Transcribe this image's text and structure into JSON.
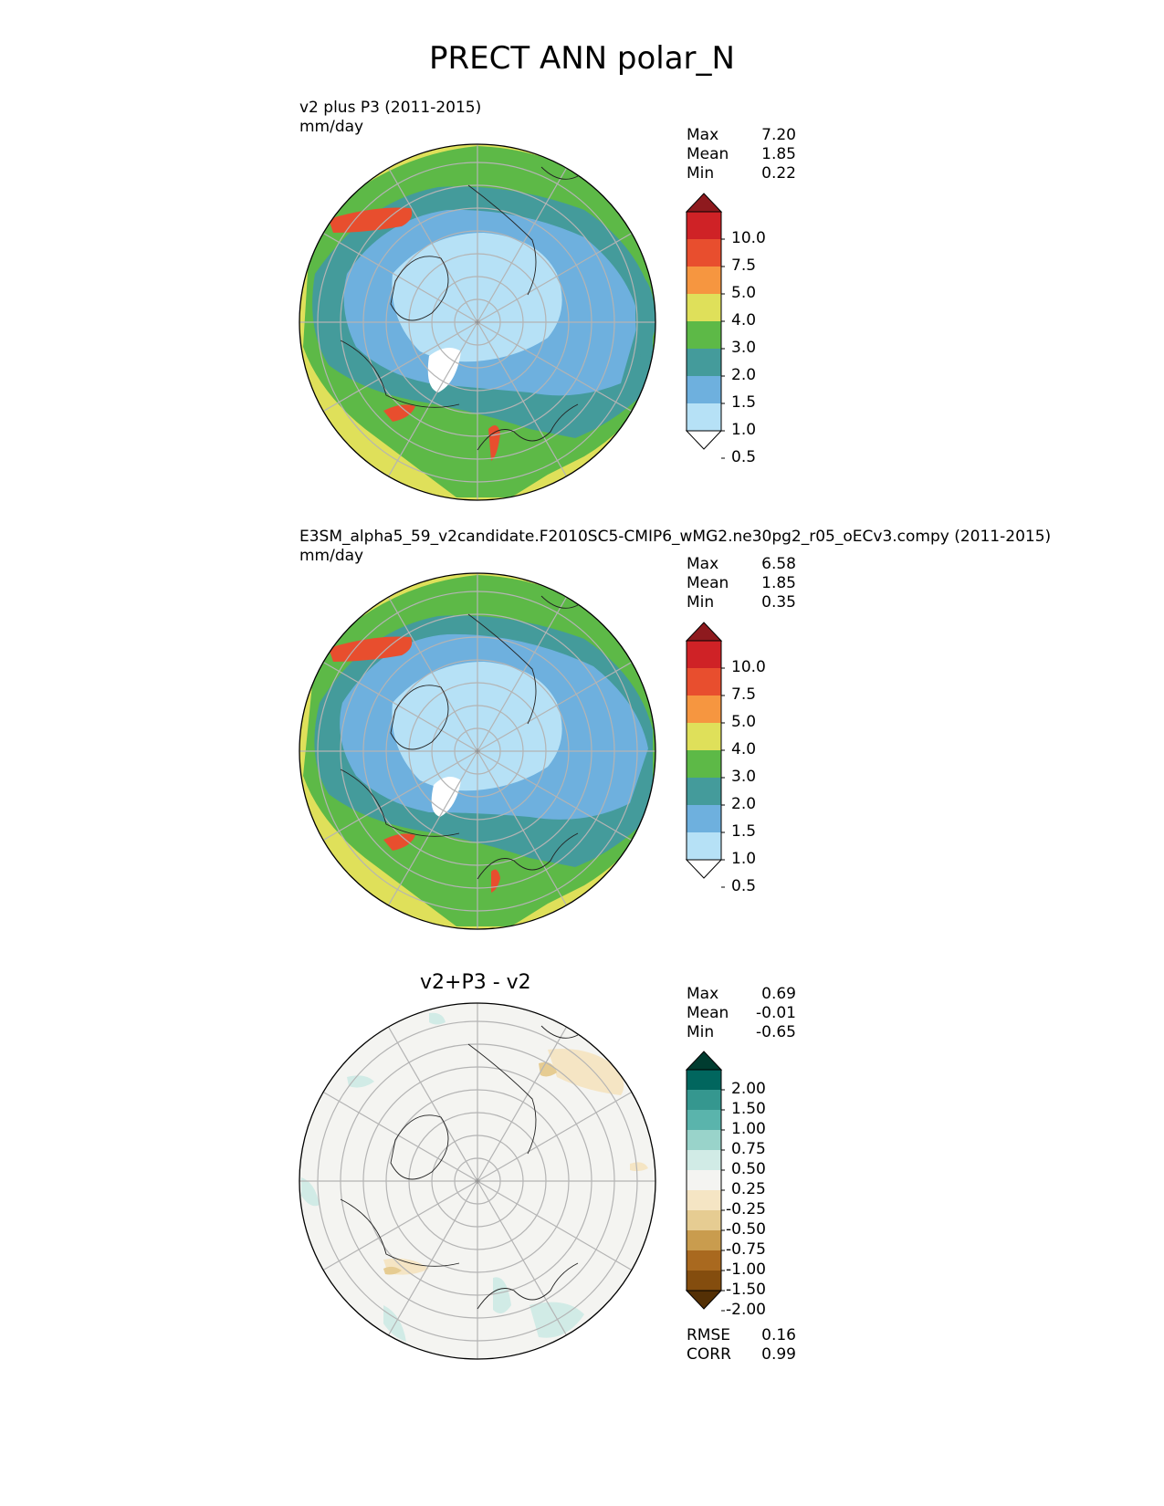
{
  "title": "PRECT ANN polar_N",
  "panels": [
    {
      "id": "test",
      "title_line1": "v2 plus P3 (2011-2015)",
      "title_line2": "mm/day",
      "stats": {
        "max_label": "Max",
        "max": "7.20",
        "mean_label": "Mean",
        "mean": "1.85",
        "min_label": "Min",
        "min": "0.22"
      },
      "colorbar": {
        "ticks": [
          "10.0",
          "7.5",
          "5.0",
          "4.0",
          "3.0",
          "2.0",
          "1.5",
          "1.0",
          "0.5"
        ],
        "colors": [
          "#8e1a1e",
          "#cf2226",
          "#e84e2e",
          "#f69640",
          "#dfe05a",
          "#5db947",
          "#449b9b",
          "#6eb0de",
          "#b6e1f6",
          "#ffffff"
        ]
      }
    },
    {
      "id": "ref",
      "title_line1": "E3SM_alpha5_59_v2candidate.F2010SC5-CMIP6_wMG2.ne30pg2_r05_oECv3.compy (2011-2015)",
      "title_line2": "mm/day",
      "stats": {
        "max_label": "Max",
        "max": "6.58",
        "mean_label": "Mean",
        "mean": "1.85",
        "min_label": "Min",
        "min": "0.35"
      },
      "colorbar": {
        "ticks": [
          "10.0",
          "7.5",
          "5.0",
          "4.0",
          "3.0",
          "2.0",
          "1.5",
          "1.0",
          "0.5"
        ],
        "colors": [
          "#8e1a1e",
          "#cf2226",
          "#e84e2e",
          "#f69640",
          "#dfe05a",
          "#5db947",
          "#449b9b",
          "#6eb0de",
          "#b6e1f6",
          "#ffffff"
        ]
      }
    },
    {
      "id": "diff",
      "title_center": "v2+P3 - v2",
      "stats": {
        "max_label": "Max",
        "max": "0.69",
        "mean_label": "Mean",
        "mean": "-0.01",
        "min_label": "Min",
        "min": "-0.65"
      },
      "colorbar": {
        "ticks": [
          "2.00",
          "1.50",
          "1.00",
          "0.75",
          "0.50",
          "0.25",
          "-0.25",
          "-0.50",
          "-0.75",
          "-1.00",
          "-1.50",
          "-2.00"
        ],
        "colors": [
          "#003c30",
          "#01665e",
          "#35978f",
          "#5ab4ac",
          "#99d3ca",
          "#d1ebe6",
          "#f4f4f1",
          "#f5e5c4",
          "#e6cc92",
          "#c99c4e",
          "#a9691f",
          "#844d0e",
          "#543005"
        ]
      },
      "rmse_label": "RMSE",
      "rmse": "0.16",
      "corr_label": "CORR",
      "corr": "0.99"
    }
  ],
  "chart_data": [
    {
      "type": "heatmap",
      "projection": "polar stereographic (north)",
      "title": "v2 plus P3 (2011-2015)",
      "units": "mm/day",
      "levels": [
        0.5,
        1.0,
        1.5,
        2.0,
        3.0,
        4.0,
        5.0,
        7.5,
        10.0
      ],
      "max": 7.2,
      "mean": 1.85,
      "min": 0.22
    },
    {
      "type": "heatmap",
      "projection": "polar stereographic (north)",
      "title": "E3SM_alpha5_59_v2candidate.F2010SC5-CMIP6_wMG2.ne30pg2_r05_oECv3.compy (2011-2015)",
      "units": "mm/day",
      "levels": [
        0.5,
        1.0,
        1.5,
        2.0,
        3.0,
        4.0,
        5.0,
        7.5,
        10.0
      ],
      "max": 6.58,
      "mean": 1.85,
      "min": 0.35
    },
    {
      "type": "heatmap",
      "projection": "polar stereographic (north)",
      "title": "v2+P3 - v2",
      "levels": [
        -2.0,
        -1.5,
        -1.0,
        -0.75,
        -0.5,
        -0.25,
        0.25,
        0.5,
        0.75,
        1.0,
        1.5,
        2.0
      ],
      "max": 0.69,
      "mean": -0.01,
      "min": -0.65,
      "rmse": 0.16,
      "corr": 0.99
    }
  ]
}
